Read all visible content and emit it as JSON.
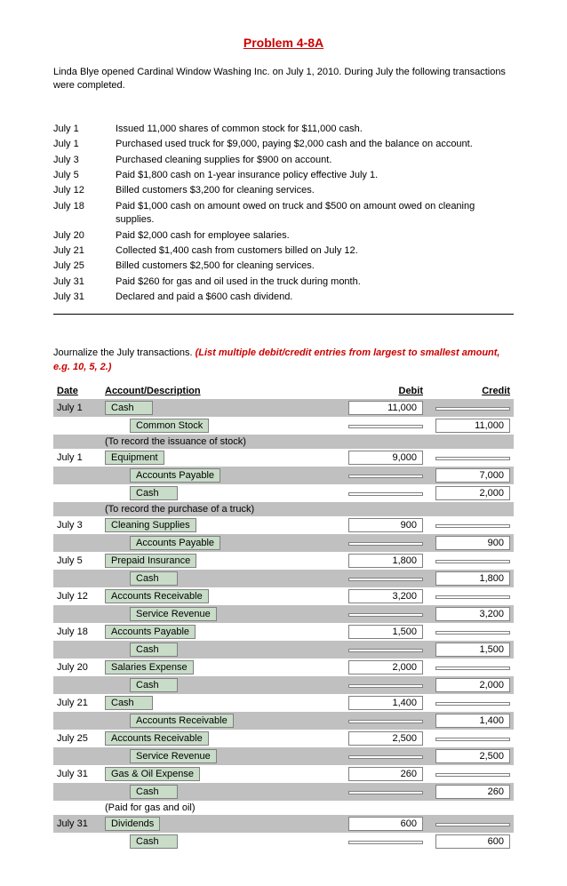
{
  "title": "Problem 4-8A",
  "intro": "Linda Blye opened Cardinal Window Washing Inc. on July 1, 2010. During July the following transactions were completed.",
  "transactions": [
    {
      "date": "July 1",
      "text": "Issued 11,000 shares of common stock for $11,000 cash."
    },
    {
      "date": "July 1",
      "text": "Purchased used truck for $9,000, paying $2,000 cash and the balance on account."
    },
    {
      "date": "July 3",
      "text": "Purchased cleaning supplies for $900 on account."
    },
    {
      "date": "July 5",
      "text": "Paid $1,800 cash on 1-year insurance policy effective July 1."
    },
    {
      "date": "July 12",
      "text": "Billed customers $3,200 for cleaning services."
    },
    {
      "date": "July 18",
      "text": "Paid $1,000 cash on amount owed on truck and $500 on amount owed on cleaning supplies."
    },
    {
      "date": "July 20",
      "text": "Paid $2,000 cash for employee salaries."
    },
    {
      "date": "July 21",
      "text": "Collected $1,400 cash from customers billed on July 12."
    },
    {
      "date": "July 25",
      "text": "Billed customers $2,500 for cleaning services."
    },
    {
      "date": "July 31",
      "text": "Paid $260 for gas and oil used in the truck during month."
    },
    {
      "date": "July 31",
      "text": "Declared and paid a $600 cash dividend."
    }
  ],
  "instruction_plain": "Journalize the July transactions. ",
  "instruction_em": "(List multiple debit/credit entries from largest to smallest amount, e.g. 10, 5, 2.)",
  "journal_headers": {
    "date": "Date",
    "acct": "Account/Description",
    "debit": "Debit",
    "credit": "Credit"
  },
  "rows": [
    {
      "shade": true,
      "date": "July 1",
      "acct": "Cash",
      "indent": false,
      "box": true,
      "debit": "11,000",
      "credit": ""
    },
    {
      "shade": false,
      "date": "",
      "acct": "Common Stock",
      "indent": true,
      "box": true,
      "debit": "",
      "credit": "11,000"
    },
    {
      "shade": true,
      "date": "",
      "acct": "(To record the issuance of stock)",
      "indent": false,
      "box": false,
      "debit": "",
      "credit": ""
    },
    {
      "shade": false,
      "date": "July 1",
      "acct": "Equipment",
      "indent": false,
      "box": true,
      "debit": "9,000",
      "credit": ""
    },
    {
      "shade": true,
      "date": "",
      "acct": "Accounts Payable",
      "indent": true,
      "box": true,
      "debit": "",
      "credit": "7,000"
    },
    {
      "shade": false,
      "date": "",
      "acct": "Cash",
      "indent": true,
      "box": true,
      "debit": "",
      "credit": "2,000"
    },
    {
      "shade": true,
      "date": "",
      "acct": "(To record the purchase of a truck)",
      "indent": false,
      "box": false,
      "debit": "",
      "credit": ""
    },
    {
      "shade": false,
      "date": "July 3",
      "acct": "Cleaning Supplies",
      "indent": false,
      "box": true,
      "debit": "900",
      "credit": ""
    },
    {
      "shade": true,
      "date": "",
      "acct": "Accounts Payable",
      "indent": true,
      "box": true,
      "debit": "",
      "credit": "900"
    },
    {
      "shade": false,
      "date": "July 5",
      "acct": "Prepaid Insurance",
      "indent": false,
      "box": true,
      "debit": "1,800",
      "credit": ""
    },
    {
      "shade": true,
      "date": "",
      "acct": "Cash",
      "indent": true,
      "box": true,
      "debit": "",
      "credit": "1,800"
    },
    {
      "shade": false,
      "date": "July 12",
      "acct": "Accounts Receivable",
      "indent": false,
      "box": true,
      "debit": "3,200",
      "credit": ""
    },
    {
      "shade": true,
      "date": "",
      "acct": "Service Revenue",
      "indent": true,
      "box": true,
      "debit": "",
      "credit": "3,200"
    },
    {
      "shade": false,
      "date": "July 18",
      "acct": "Accounts Payable",
      "indent": false,
      "box": true,
      "debit": "1,500",
      "credit": ""
    },
    {
      "shade": true,
      "date": "",
      "acct": "Cash",
      "indent": true,
      "box": true,
      "debit": "",
      "credit": "1,500"
    },
    {
      "shade": false,
      "date": "July 20",
      "acct": "Salaries Expense",
      "indent": false,
      "box": true,
      "debit": "2,000",
      "credit": ""
    },
    {
      "shade": true,
      "date": "",
      "acct": "Cash",
      "indent": true,
      "box": true,
      "debit": "",
      "credit": "2,000"
    },
    {
      "shade": false,
      "date": "July 21",
      "acct": "Cash",
      "indent": false,
      "box": true,
      "debit": "1,400",
      "credit": ""
    },
    {
      "shade": true,
      "date": "",
      "acct": "Accounts Receivable",
      "indent": true,
      "box": true,
      "debit": "",
      "credit": "1,400"
    },
    {
      "shade": false,
      "date": "July 25",
      "acct": "Accounts Receivable",
      "indent": false,
      "box": true,
      "debit": "2,500",
      "credit": ""
    },
    {
      "shade": true,
      "date": "",
      "acct": "Service Revenue",
      "indent": true,
      "box": true,
      "debit": "",
      "credit": "2,500"
    },
    {
      "shade": false,
      "date": "July 31",
      "acct": "Gas & Oil Expense",
      "indent": false,
      "box": true,
      "debit": "260",
      "credit": ""
    },
    {
      "shade": true,
      "date": "",
      "acct": "Cash",
      "indent": true,
      "box": true,
      "debit": "",
      "credit": "260"
    },
    {
      "shade": false,
      "date": "",
      "acct": "(Paid for gas and oil)",
      "indent": false,
      "box": false,
      "debit": "",
      "credit": ""
    },
    {
      "shade": true,
      "date": "July 31",
      "acct": "Dividends",
      "indent": false,
      "box": true,
      "debit": "600",
      "credit": ""
    },
    {
      "shade": false,
      "date": "",
      "acct": "Cash",
      "indent": true,
      "box": true,
      "debit": "",
      "credit": "600"
    }
  ]
}
